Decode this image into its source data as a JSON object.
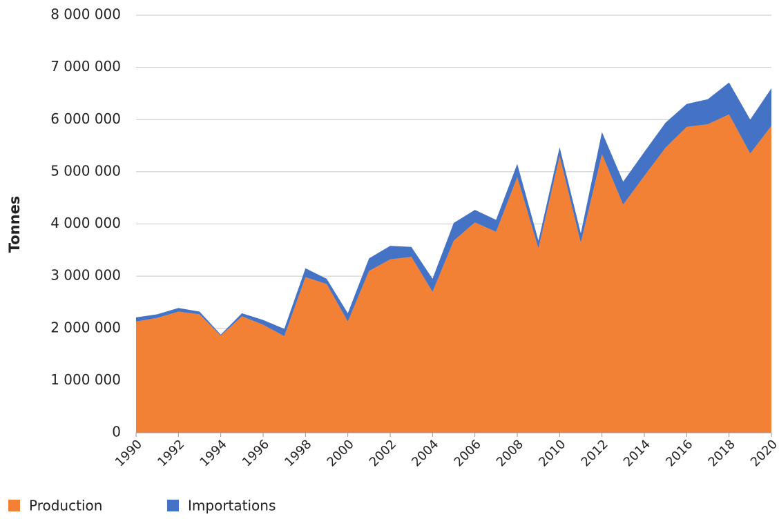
{
  "chart_data": {
    "type": "stacked_area",
    "y_label": "Tonnes",
    "x": [
      1990,
      1991,
      1992,
      1993,
      1994,
      1995,
      1996,
      1997,
      1998,
      1999,
      2000,
      2001,
      2002,
      2003,
      2004,
      2005,
      2006,
      2007,
      2008,
      2009,
      2010,
      2011,
      2012,
      2013,
      2014,
      2015,
      2016,
      2017,
      2018,
      2019,
      2020
    ],
    "series": [
      {
        "name": "Production",
        "color": "#f28035",
        "values": [
          2130000,
          2200000,
          2320000,
          2270000,
          1860000,
          2230000,
          2070000,
          1850000,
          2980000,
          2850000,
          2130000,
          3100000,
          3320000,
          3370000,
          2700000,
          3680000,
          4030000,
          3850000,
          4900000,
          3530000,
          5300000,
          3640000,
          5340000,
          4370000,
          4920000,
          5460000,
          5860000,
          5910000,
          6100000,
          5350000,
          5880000
        ]
      },
      {
        "name": "Importations",
        "color": "#4472c4",
        "values": [
          80000,
          70000,
          70000,
          50000,
          20000,
          60000,
          90000,
          140000,
          170000,
          100000,
          160000,
          240000,
          260000,
          190000,
          250000,
          340000,
          240000,
          230000,
          250000,
          150000,
          170000,
          180000,
          420000,
          440000,
          460000,
          480000,
          440000,
          480000,
          610000,
          650000,
          720000
        ]
      }
    ],
    "xlim": [
      1990,
      2020
    ],
    "xticks": [
      1990,
      1992,
      1994,
      1996,
      1998,
      2000,
      2002,
      2004,
      2006,
      2008,
      2010,
      2012,
      2014,
      2016,
      2018,
      2020
    ],
    "ylim": [
      0,
      8000000
    ],
    "yticks": [
      0,
      {
        "value": 1000000,
        "label": "1 000 000"
      },
      {
        "value": 2000000,
        "label": "2 000 000"
      },
      {
        "value": 3000000,
        "label": "3 000 000"
      },
      {
        "value": 4000000,
        "label": "4 000 000"
      },
      {
        "value": 5000000,
        "label": "5 000 000"
      },
      {
        "value": 6000000,
        "label": "6 000 000"
      },
      {
        "value": 7000000,
        "label": "7 000 000"
      },
      {
        "value": 8000000,
        "label": "8 000 000"
      }
    ],
    "grid": true,
    "legend": "bottom-left"
  }
}
